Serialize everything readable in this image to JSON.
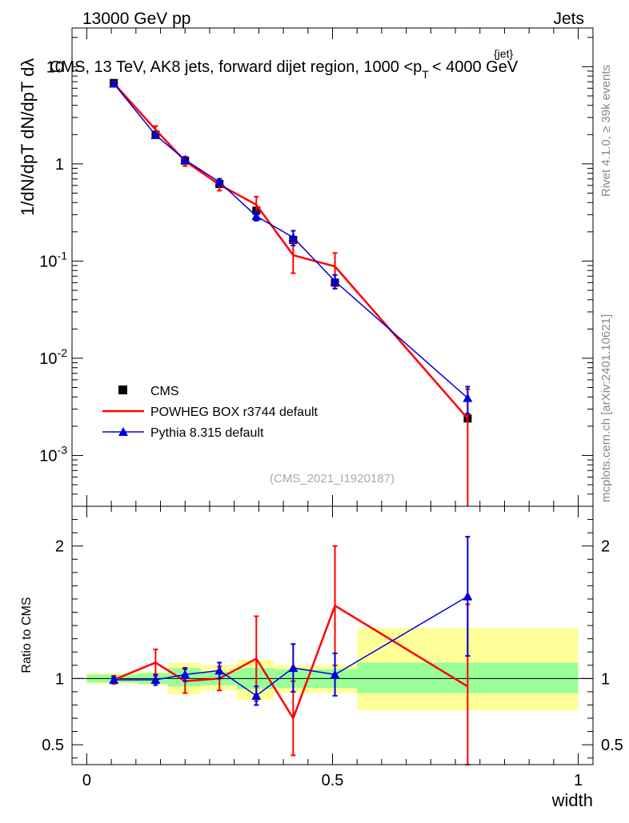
{
  "header": {
    "energy": "13000 GeV pp",
    "category": "Jets",
    "title": "CMS, 13 TeV, AK8 jets, forward dijet region, 1000 <p",
    "title_sup": "{jet}",
    "title_sub": "T",
    "title_end": "< 4000 GeV"
  },
  "side_labels": {
    "rivet": "Rivet 4.1.0, ≥ 39k events",
    "mcplots": "mcplots.cern.ch [arXiv:2401.10621]"
  },
  "analysis_id": "(CMS_2021_I1920187)",
  "y_label_main": "1/dN/dpT dN/dpT dλ",
  "y_label_ratio": "Ratio to CMS",
  "x_label": "width",
  "colors": {
    "data": "#000000",
    "powheg": "#ff0000",
    "pythia": "#0000dd",
    "band_inner": "#99ff99",
    "band_outer": "#ffff99"
  },
  "chart_data": {
    "type": "line",
    "x_range": [
      -0.03,
      1.03
    ],
    "main": {
      "yscale": "log",
      "ylim": [
        0.0003,
        25
      ],
      "yticks": [
        {
          "v": 0.001,
          "mant": "10",
          "exp": "-3"
        },
        {
          "v": 0.01,
          "mant": "10",
          "exp": "-2"
        },
        {
          "v": 0.1,
          "mant": "10",
          "exp": "-1"
        },
        {
          "v": 1,
          "mant": "1",
          "exp": ""
        },
        {
          "v": 10,
          "mant": "10",
          "exp": ""
        }
      ],
      "series": [
        {
          "name": "CMS",
          "kind": "data",
          "x": [
            0.055,
            0.14,
            0.2,
            0.27,
            0.345,
            0.42,
            0.505,
            0.775
          ],
          "y": [
            6.8,
            2.0,
            1.08,
            0.62,
            0.33,
            0.165,
            0.06,
            0.0024
          ]
        },
        {
          "name": "POWHEG BOX r3744 default",
          "kind": "powheg",
          "x": [
            0.055,
            0.14,
            0.2,
            0.27,
            0.345,
            0.42,
            0.505,
            0.775
          ],
          "y": [
            6.75,
            2.25,
            1.07,
            0.61,
            0.38,
            0.115,
            0.088,
            0.0024
          ],
          "err": [
            0.25,
            0.2,
            0.12,
            0.08,
            0.08,
            0.04,
            0.033,
            0.0024
          ]
        },
        {
          "name": "Pythia 8.315 default",
          "kind": "pythia",
          "x": [
            0.055,
            0.14,
            0.2,
            0.27,
            0.345,
            0.42,
            0.505,
            0.775
          ],
          "y": [
            6.7,
            1.98,
            1.1,
            0.65,
            0.29,
            0.175,
            0.062,
            0.0039
          ],
          "err": [
            0.15,
            0.08,
            0.06,
            0.05,
            0.03,
            0.03,
            0.01,
            0.0012
          ]
        }
      ]
    },
    "ratio": {
      "ylim": [
        0.35,
        2.3
      ],
      "yticks": [
        0.5,
        1,
        2
      ],
      "reference": 1,
      "bands": [
        {
          "x0": 0.0,
          "x1": 0.105,
          "inner": [
            0.97,
            1.03
          ],
          "outer": [
            0.96,
            1.04
          ]
        },
        {
          "x0": 0.105,
          "x1": 0.165,
          "inner": [
            0.96,
            1.04
          ],
          "outer": [
            0.95,
            1.05
          ]
        },
        {
          "x0": 0.165,
          "x1": 0.232,
          "inner": [
            0.94,
            1.08
          ],
          "outer": [
            0.88,
            1.12
          ]
        },
        {
          "x0": 0.232,
          "x1": 0.305,
          "inner": [
            0.95,
            1.05
          ],
          "outer": [
            0.91,
            1.1
          ]
        },
        {
          "x0": 0.305,
          "x1": 0.38,
          "inner": [
            0.92,
            1.08
          ],
          "outer": [
            0.84,
            1.14
          ]
        },
        {
          "x0": 0.38,
          "x1": 0.55,
          "inner": [
            0.93,
            1.07
          ],
          "outer": [
            0.89,
            1.1
          ]
        },
        {
          "x0": 0.55,
          "x1": 1.0,
          "inner": [
            0.89,
            1.12
          ],
          "outer": [
            0.76,
            1.38
          ]
        }
      ],
      "series": [
        {
          "name": "POWHEG BOX r3744 default",
          "kind": "powheg",
          "x": [
            0.055,
            0.14,
            0.2,
            0.27,
            0.345,
            0.42,
            0.505,
            0.775
          ],
          "y": [
            0.99,
            1.12,
            0.98,
            1.0,
            1.15,
            0.7,
            1.55,
            0.94
          ],
          "err": [
            0.03,
            0.1,
            0.09,
            0.09,
            0.32,
            0.28,
            0.45,
            0.62
          ]
        },
        {
          "name": "Pythia 8.315 default",
          "kind": "pythia",
          "x": [
            0.055,
            0.14,
            0.2,
            0.27,
            0.345,
            0.42,
            0.505,
            0.775
          ],
          "y": [
            0.99,
            0.99,
            1.03,
            1.06,
            0.87,
            1.08,
            1.03,
            1.62
          ],
          "err": [
            0.02,
            0.04,
            0.05,
            0.06,
            0.07,
            0.18,
            0.16,
            0.45
          ]
        }
      ]
    },
    "xticks": [
      0,
      0.5,
      1
    ]
  }
}
